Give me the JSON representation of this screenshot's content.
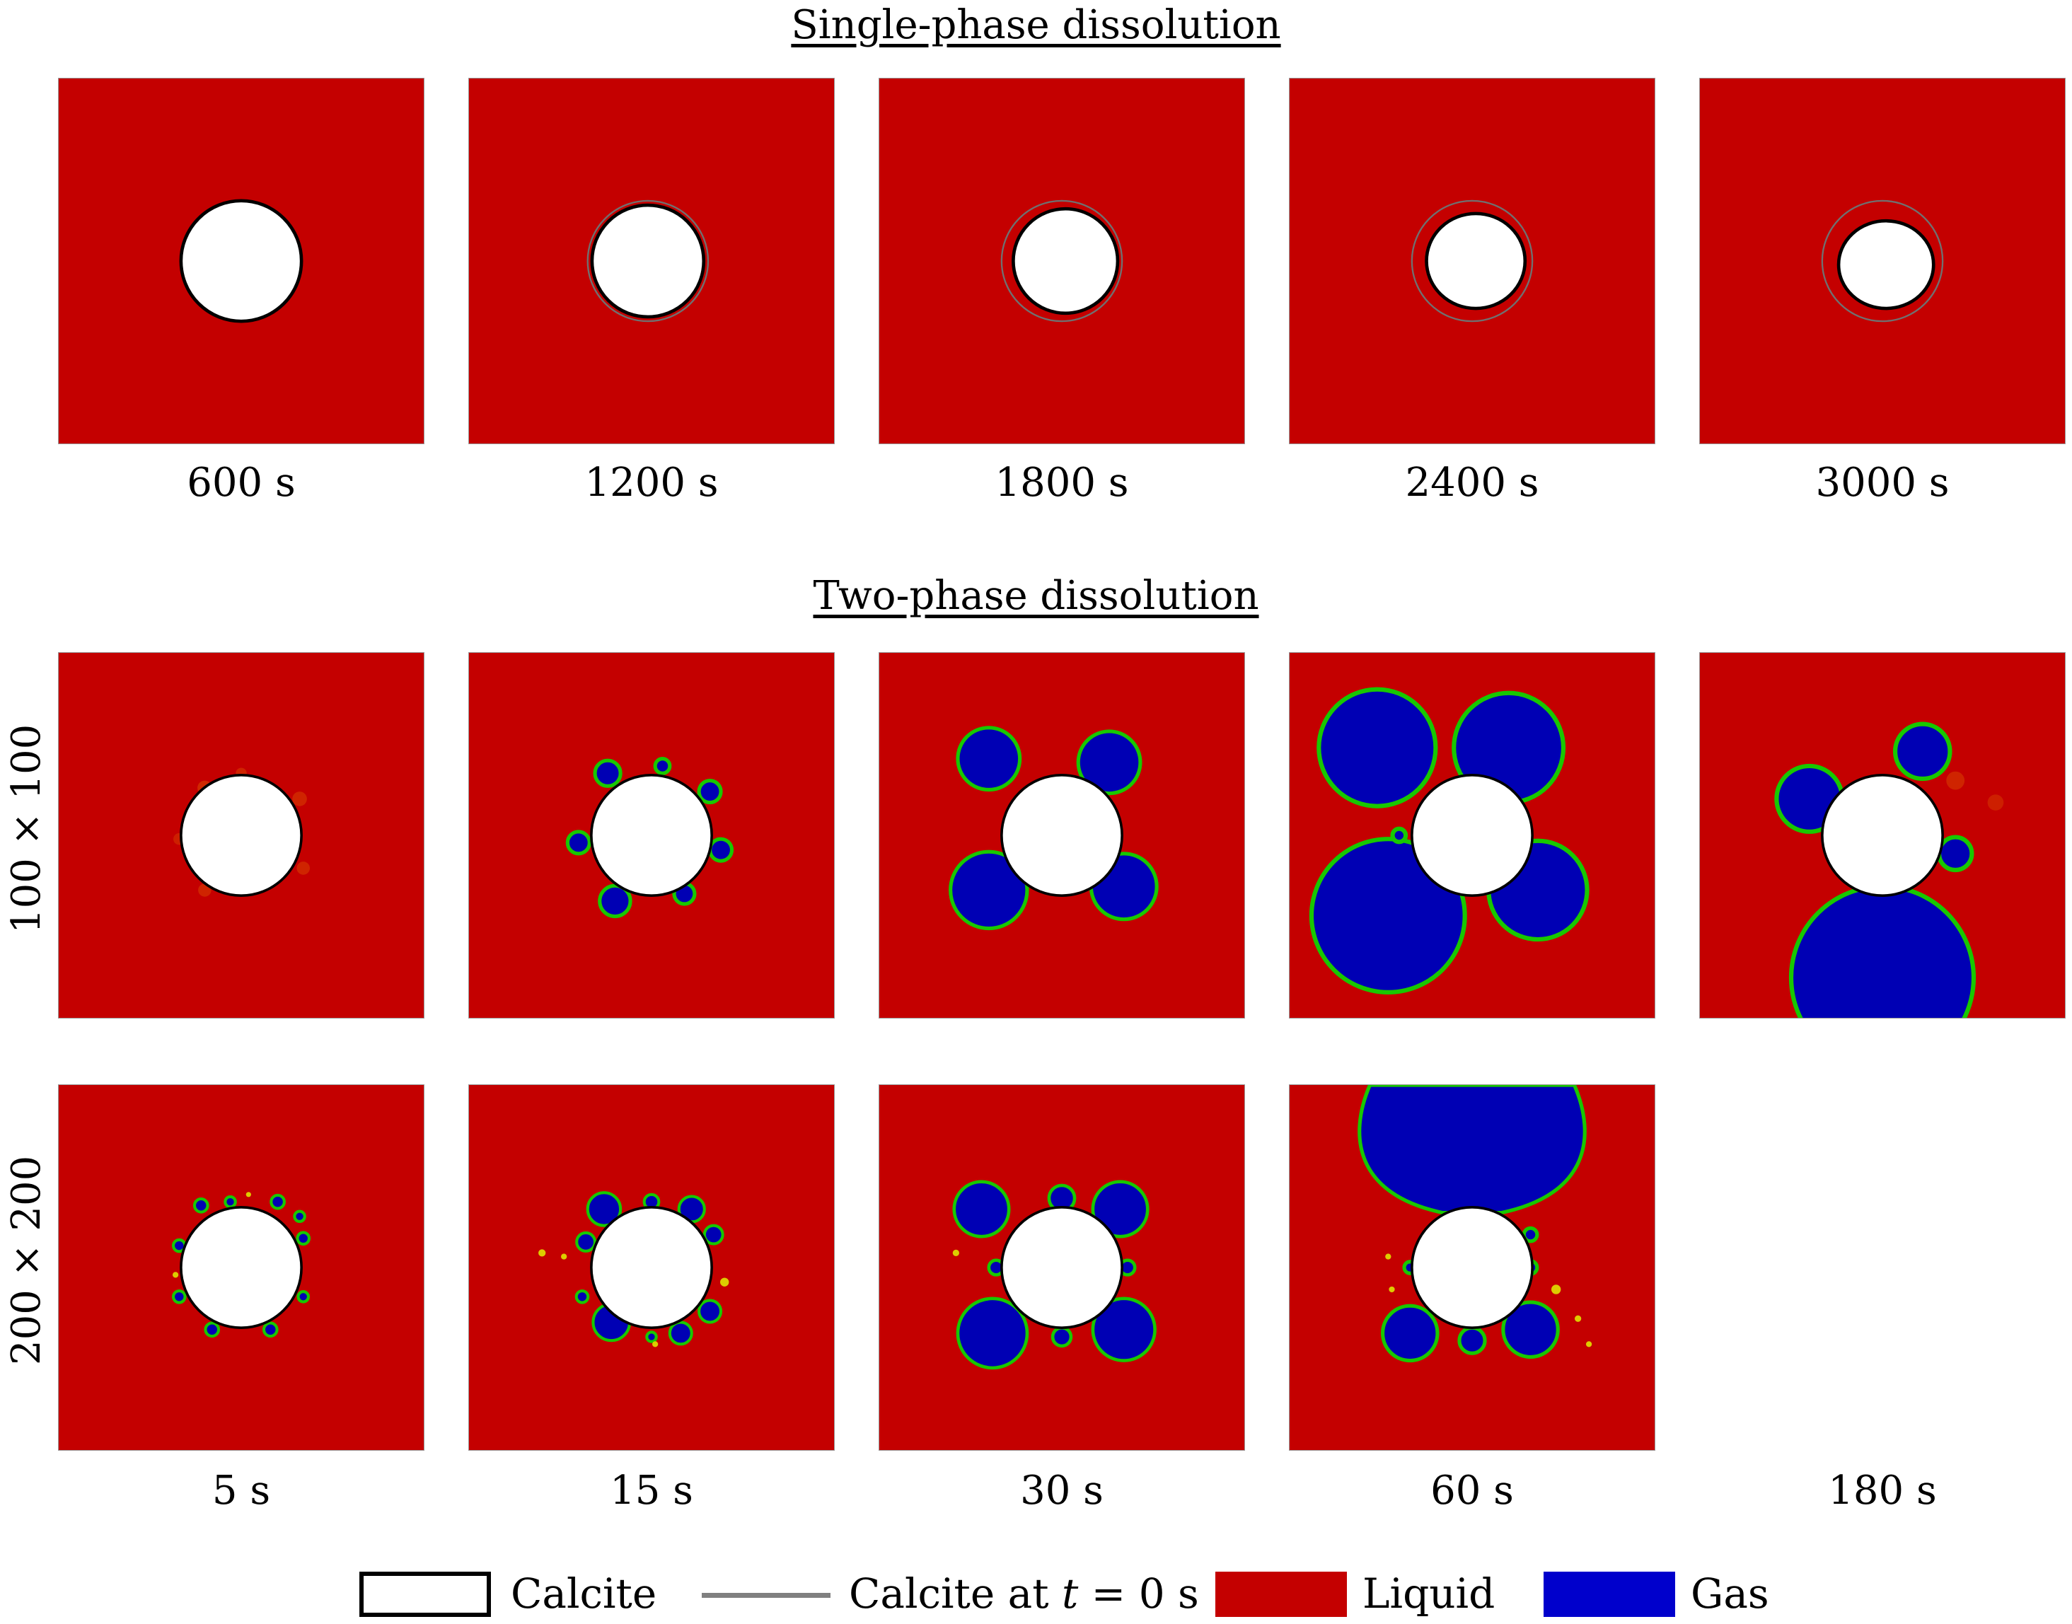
{
  "titles": {
    "single": "Single-phase dissolution",
    "two": "Two-phase dissolution"
  },
  "single_phase": {
    "times": [
      "600 s",
      "1200 s",
      "1800 s",
      "2400 s",
      "3000 s"
    ],
    "calcite_radius_fraction": [
      0.165,
      0.155,
      0.145,
      0.135,
      0.125
    ]
  },
  "two_phase": {
    "rows": [
      "100 × 100",
      "200 × 200"
    ],
    "times": [
      "5 s",
      "15 s",
      "30 s",
      "60 s",
      "180 s"
    ]
  },
  "legend": {
    "calcite": "Calcite",
    "calcite_t0_prefix": "Calcite at ",
    "calcite_t0_var": "t",
    "calcite_t0_suffix": " = 0 s",
    "liquid": "Liquid",
    "gas": "Gas"
  },
  "colors": {
    "liquid": "#c40000",
    "gas": "#0000b4",
    "interface": "#18c800",
    "calcite": "#ffffff",
    "initial_outline": "#707070"
  }
}
